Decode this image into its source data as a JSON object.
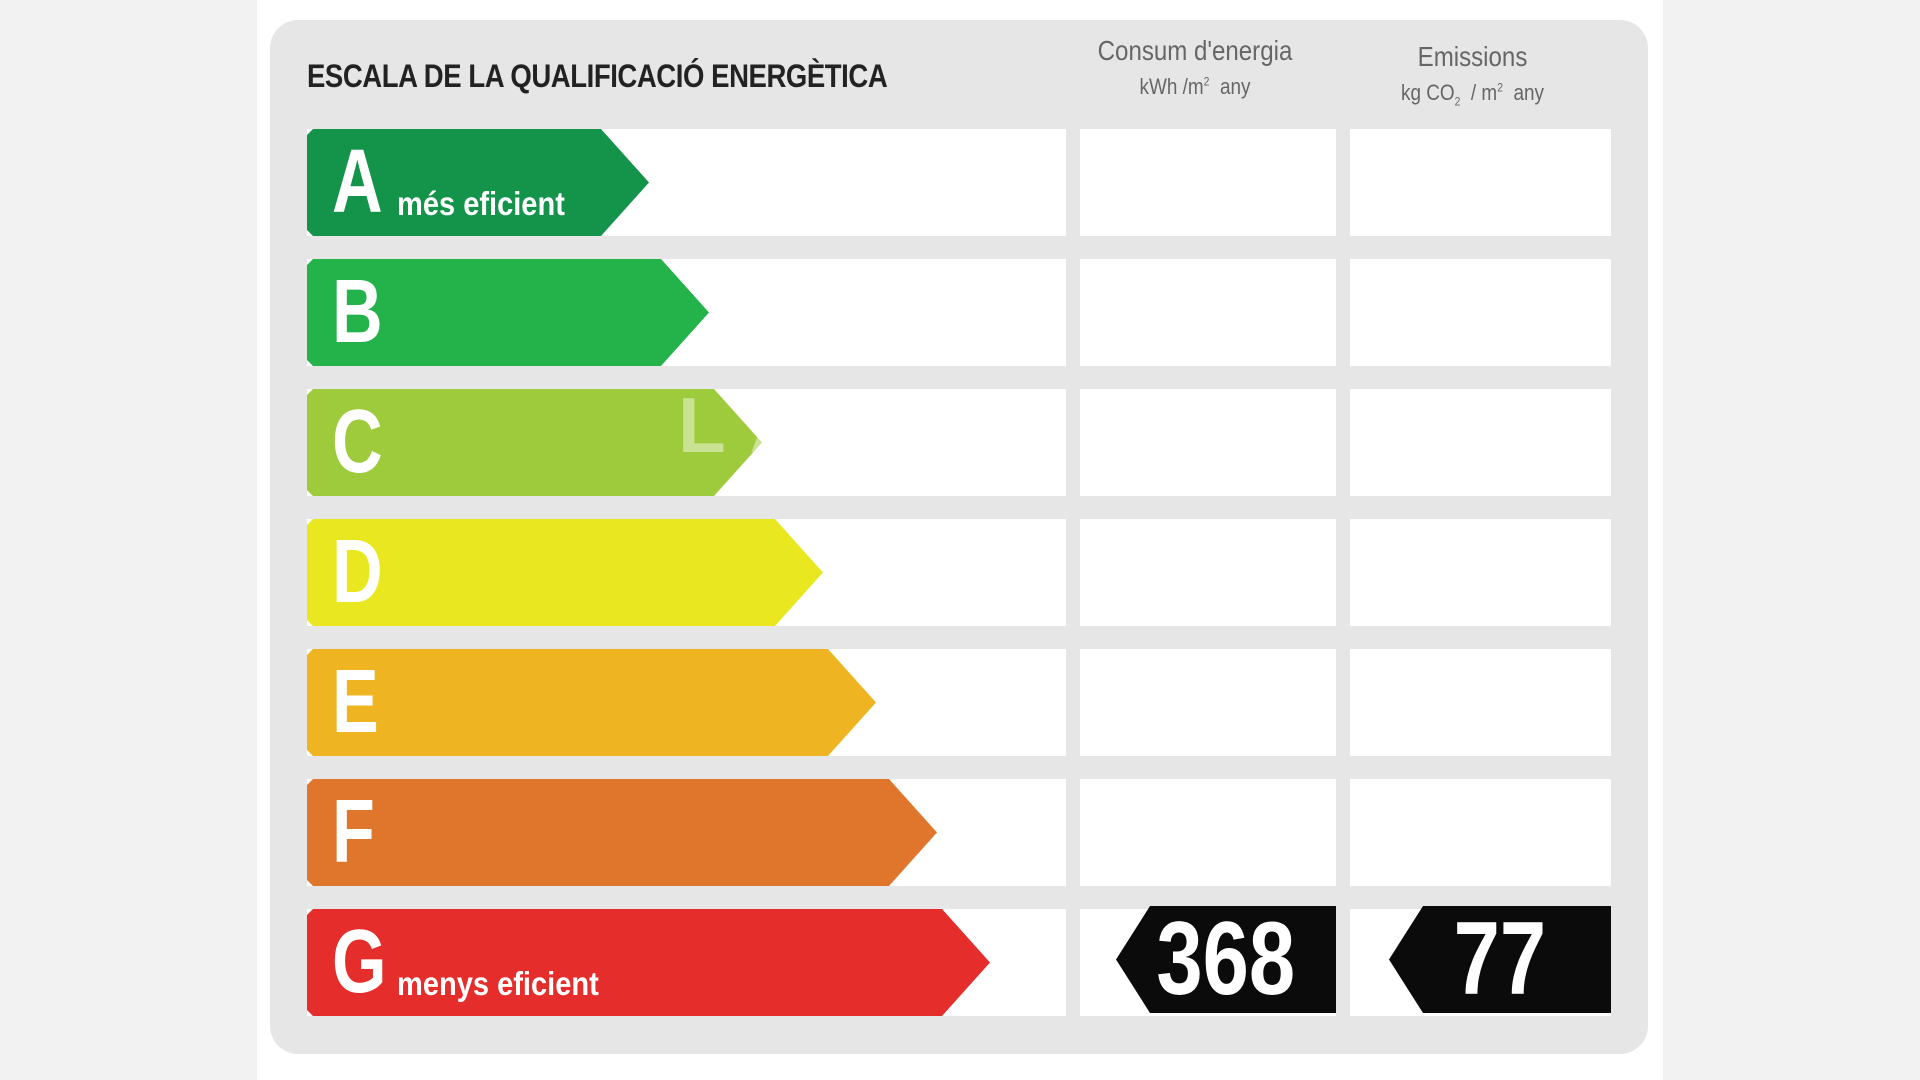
{
  "title": "ESCALA DE LA QUALIFICACIÓ ENERGÈTICA",
  "energy_column": {
    "label": "Consum d'energia",
    "units_prefix": "kWh /m",
    "units_sup": "2",
    "units_suffix": "any"
  },
  "emissions_column": {
    "label": "Emissions",
    "units_prefix": "kg CO",
    "units_sub": "2",
    "units_mid": "/ m",
    "units_sup": "2",
    "units_suffix": "any"
  },
  "watermark": "LA",
  "rating": {
    "classes": [
      {
        "letter": "A",
        "sublabel": "més eficient",
        "color": "#14934b",
        "length_fraction": 0.45
      },
      {
        "letter": "B",
        "sublabel": "",
        "color": "#24b24b",
        "length_fraction": 0.53
      },
      {
        "letter": "C",
        "sublabel": "",
        "color": "#9ecb3c",
        "length_fraction": 0.6
      },
      {
        "letter": "D",
        "sublabel": "",
        "color": "#e9e820",
        "length_fraction": 0.68
      },
      {
        "letter": "E",
        "sublabel": "",
        "color": "#efb422",
        "length_fraction": 0.75
      },
      {
        "letter": "F",
        "sublabel": "",
        "color": "#e0762b",
        "length_fraction": 0.83
      },
      {
        "letter": "G",
        "sublabel": "menys eficient",
        "color": "#e52d2b",
        "length_fraction": 0.9
      }
    ],
    "current_class": "G",
    "energy_value": "368",
    "emissions_value": "77"
  }
}
